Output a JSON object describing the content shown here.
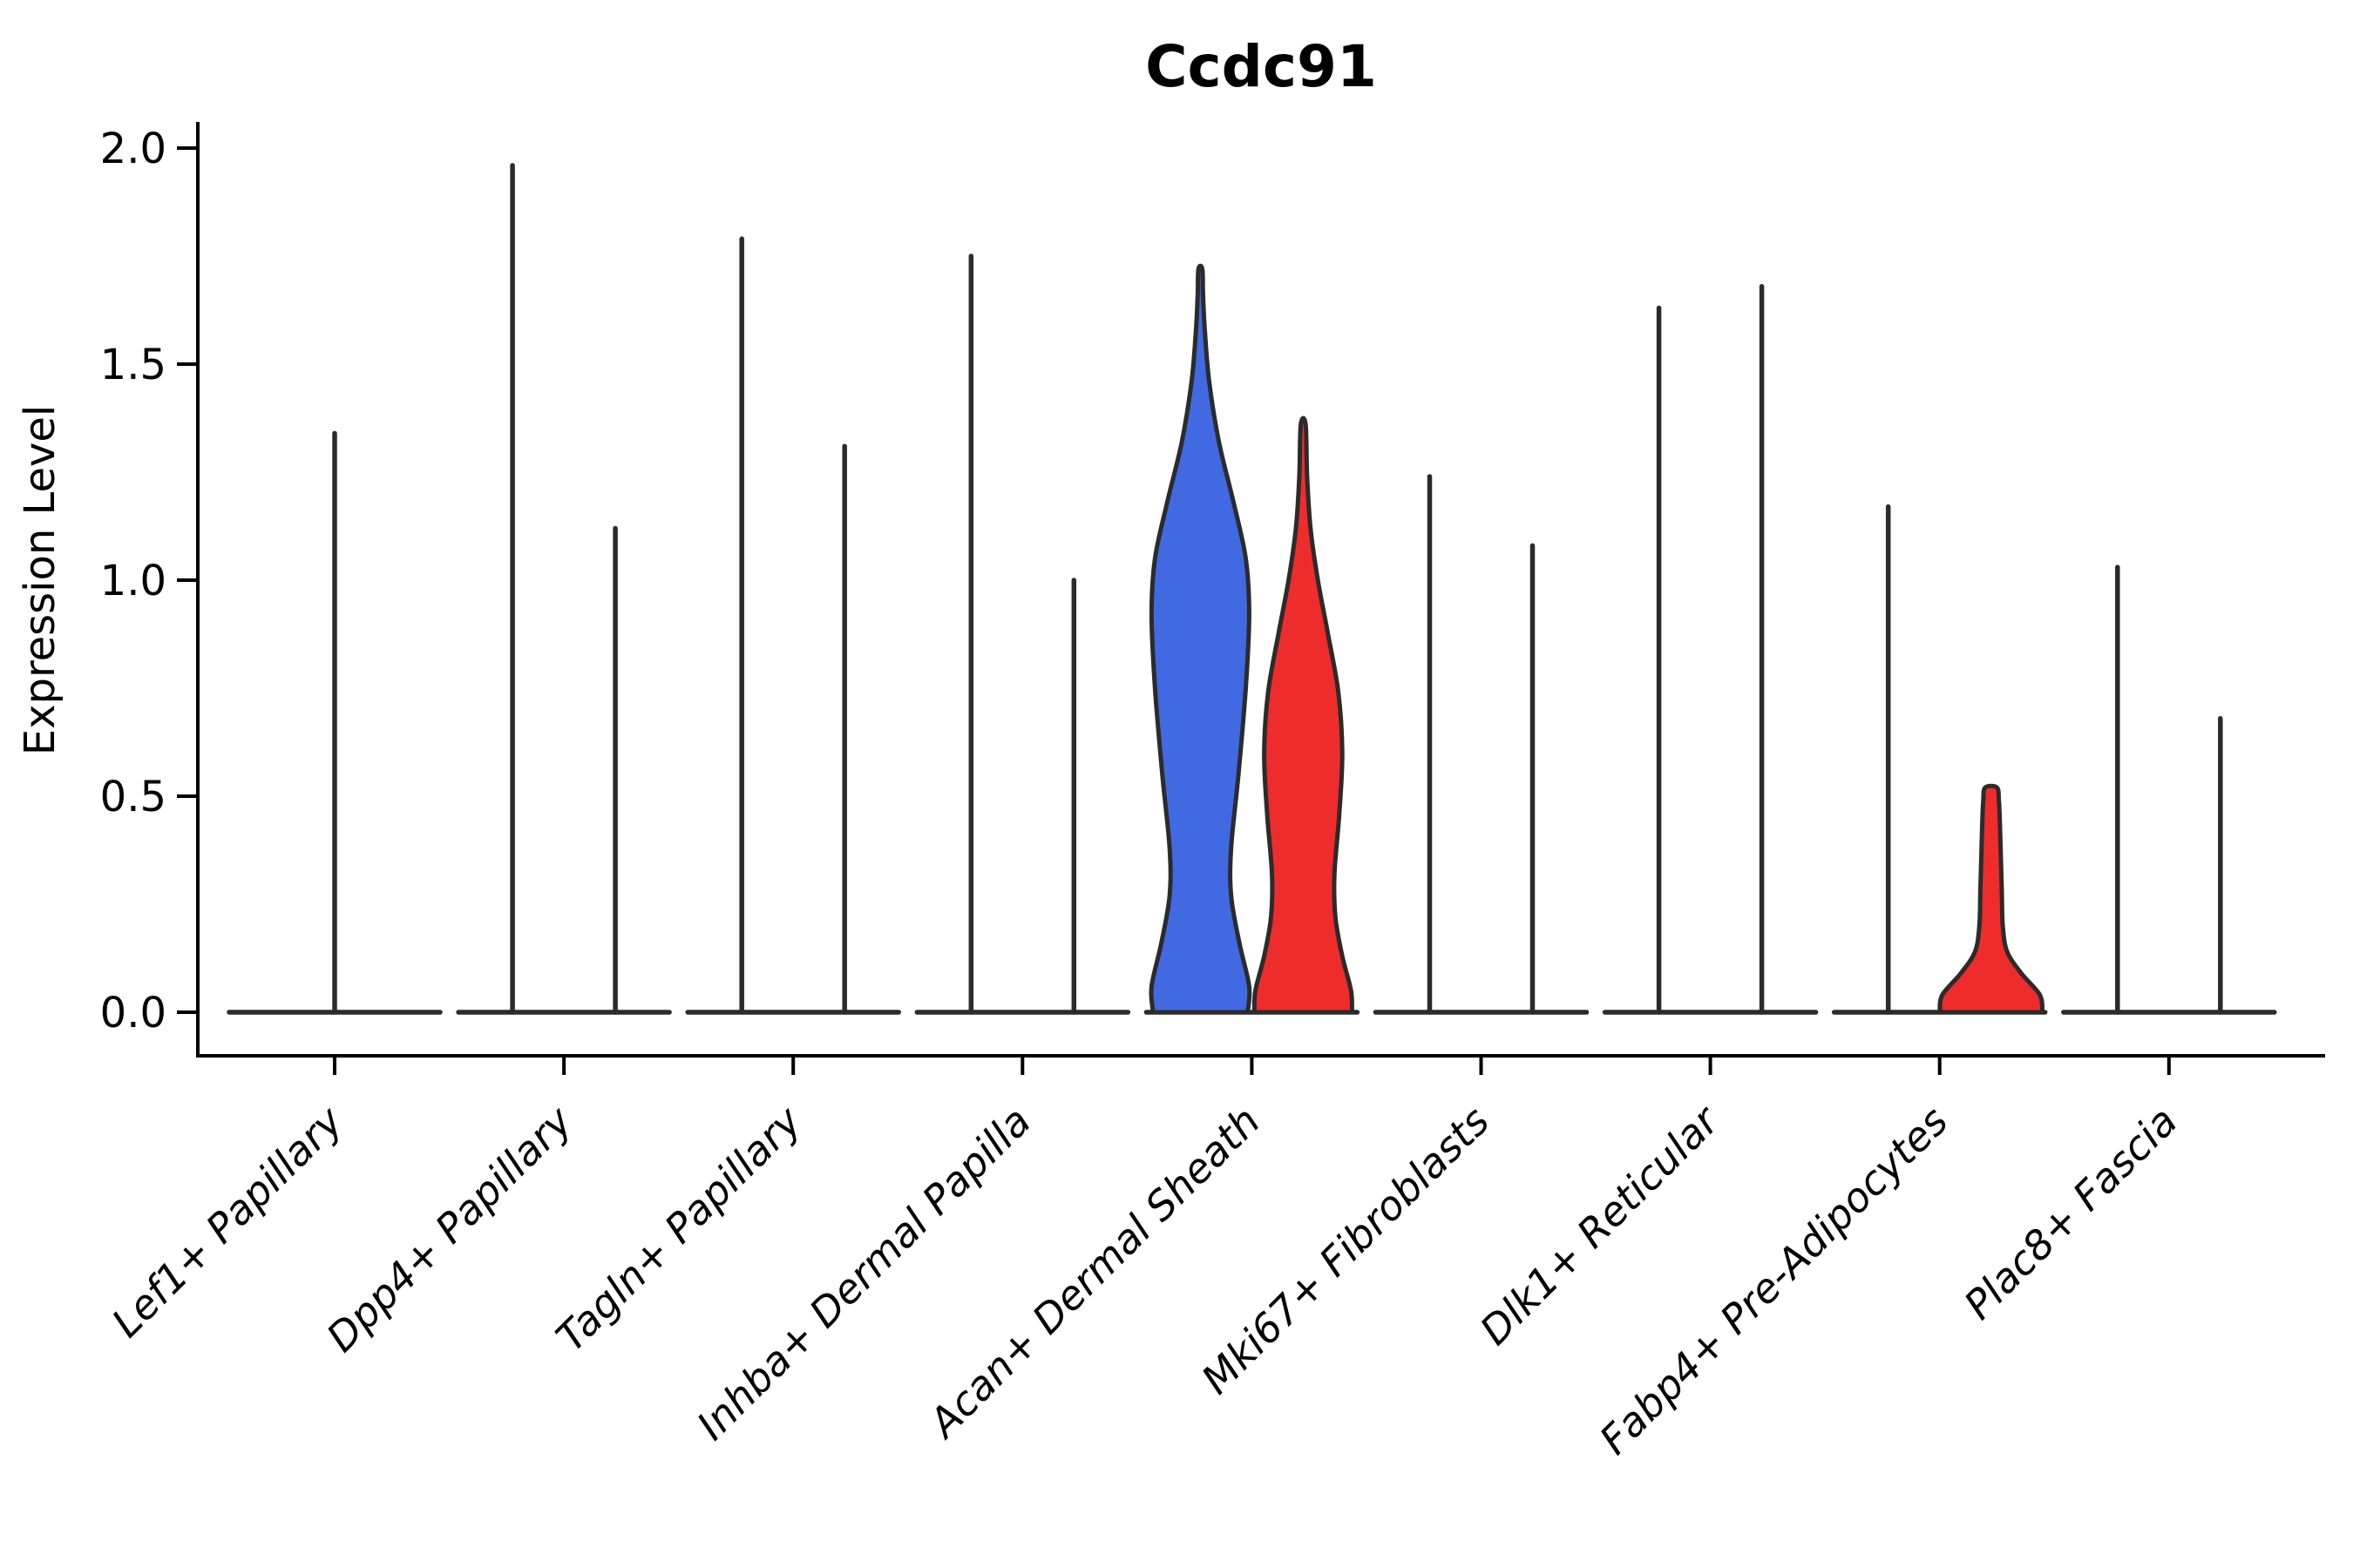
{
  "chart_data": {
    "type": "violin",
    "title": "Ccdc91",
    "ylabel": "Expression Level",
    "xlabel": "",
    "ylim": [
      0.0,
      2.05
    ],
    "grid": false,
    "legend": "none",
    "yticks": [
      {
        "value": 0.0,
        "label": "0.0"
      },
      {
        "value": 0.5,
        "label": "0.5"
      },
      {
        "value": 1.0,
        "label": "1.0"
      },
      {
        "value": 1.5,
        "label": "1.5"
      },
      {
        "value": 2.0,
        "label": "2.0"
      }
    ],
    "colors": {
      "blue": "#4169E1",
      "red": "#EE2C2C",
      "outline": "#2B2B2B",
      "axis": "#000000"
    },
    "categories": [
      {
        "label": "Lef1+ Papillary",
        "violins": [
          {
            "position": "center",
            "max": 1.34,
            "style": "spike"
          }
        ]
      },
      {
        "label": "Dpp4+ Papillary",
        "violins": [
          {
            "position": "left",
            "max": 1.96,
            "style": "spike"
          },
          {
            "position": "right",
            "max": 1.12,
            "style": "spike"
          }
        ]
      },
      {
        "label": "Tagln+ Papillary",
        "violins": [
          {
            "position": "left",
            "max": 1.79,
            "style": "spike"
          },
          {
            "position": "right",
            "max": 1.31,
            "style": "spike"
          }
        ]
      },
      {
        "label": "Inhba+ Dermal Papilla",
        "violins": [
          {
            "position": "left",
            "max": 1.75,
            "style": "spike"
          },
          {
            "position": "right",
            "max": 1.0,
            "style": "spike"
          }
        ]
      },
      {
        "label": "Acan+ Dermal Sheath",
        "violins": [
          {
            "position": "left",
            "max": 1.72,
            "style": "filled",
            "color": "blue",
            "profile": [
              [
                0,
                0.97
              ],
              [
                0.06,
                1.0
              ],
              [
                0.16,
                0.8
              ],
              [
                0.27,
                0.63
              ],
              [
                0.38,
                0.63
              ],
              [
                0.55,
                0.78
              ],
              [
                0.75,
                0.93
              ],
              [
                0.92,
                1.0
              ],
              [
                1.05,
                0.93
              ],
              [
                1.18,
                0.68
              ],
              [
                1.32,
                0.38
              ],
              [
                1.46,
                0.18
              ],
              [
                1.58,
                0.09
              ],
              [
                1.66,
                0.055
              ],
              [
                1.72,
                0.04
              ]
            ]
          },
          {
            "position": "right",
            "max": 1.36,
            "style": "filled",
            "color": "red",
            "profile": [
              [
                0,
                1.0
              ],
              [
                0.05,
                0.98
              ],
              [
                0.13,
                0.8
              ],
              [
                0.22,
                0.66
              ],
              [
                0.32,
                0.64
              ],
              [
                0.46,
                0.74
              ],
              [
                0.6,
                0.8
              ],
              [
                0.74,
                0.72
              ],
              [
                0.88,
                0.5
              ],
              [
                1.0,
                0.3
              ],
              [
                1.12,
                0.15
              ],
              [
                1.24,
                0.08
              ],
              [
                1.36,
                0.05
              ]
            ]
          }
        ]
      },
      {
        "label": "Mki67+ Fibroblasts",
        "violins": [
          {
            "position": "left",
            "max": 1.24,
            "style": "spike"
          },
          {
            "position": "right",
            "max": 1.08,
            "style": "spike"
          }
        ]
      },
      {
        "label": "Dlk1+ Reticular",
        "violins": [
          {
            "position": "left",
            "max": 1.63,
            "style": "spike"
          },
          {
            "position": "right",
            "max": 1.68,
            "style": "spike"
          }
        ]
      },
      {
        "label": "Fabp4+ Pre-Adipocytes",
        "violins": [
          {
            "position": "left",
            "max": 1.17,
            "style": "spike"
          },
          {
            "position": "right",
            "max": 0.52,
            "style": "filled",
            "color": "red",
            "profile": [
              [
                0,
                1.05
              ],
              [
                0.04,
                1.0
              ],
              [
                0.09,
                0.62
              ],
              [
                0.14,
                0.33
              ],
              [
                0.2,
                0.24
              ],
              [
                0.28,
                0.22
              ],
              [
                0.36,
                0.2
              ],
              [
                0.44,
                0.18
              ],
              [
                0.49,
                0.16
              ],
              [
                0.52,
                0.12
              ]
            ]
          }
        ]
      },
      {
        "label": "Plac8+ Fascia",
        "violins": [
          {
            "position": "left",
            "max": 1.03,
            "style": "spike"
          },
          {
            "position": "right",
            "max": 0.68,
            "style": "spike"
          }
        ]
      }
    ]
  }
}
